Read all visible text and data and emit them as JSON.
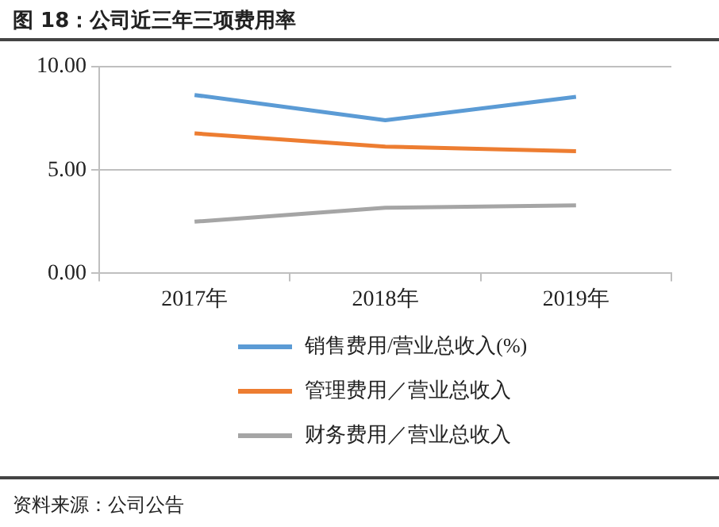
{
  "chart_data": {
    "type": "line",
    "title": "图 18：公司近三年三项费用率",
    "categories": [
      "2017年",
      "2018年",
      "2019年"
    ],
    "series": [
      {
        "name": "销售费用/营业总收入(%)",
        "color": "#5b9bd5",
        "values": [
          8.63,
          7.41,
          8.54
        ]
      },
      {
        "name": "管理费用／营业总收入",
        "color": "#ed7d31",
        "values": [
          6.77,
          6.13,
          5.91
        ]
      },
      {
        "name": "财务费用／营业总收入",
        "color": "#a5a5a5",
        "values": [
          2.5,
          3.17,
          3.29
        ]
      }
    ],
    "ylim": [
      0,
      10
    ],
    "yticks": [
      {
        "value": 0,
        "label": "0.00"
      },
      {
        "value": 5,
        "label": "5.00"
      },
      {
        "value": 10,
        "label": "10.00"
      }
    ],
    "grid": "y",
    "legend": "bottom",
    "marker": "none",
    "line_style": "solid",
    "annotations": [
      "资料来源：公司公告"
    ]
  }
}
